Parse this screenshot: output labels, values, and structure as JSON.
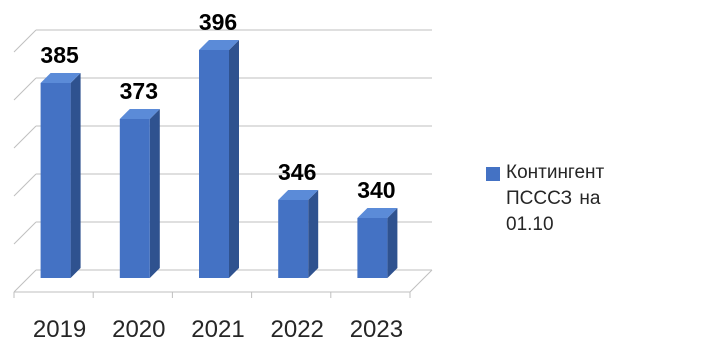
{
  "chart_data": {
    "type": "bar",
    "categories": [
      "2019",
      "2020",
      "2021",
      "2022",
      "2023"
    ],
    "series": [
      {
        "name": "Контингент  ПСССЗ на 01.10",
        "values": [
          385,
          373,
          396,
          346,
          340
        ]
      }
    ],
    "data_labels": [
      "385",
      "373",
      "396",
      "346",
      "340"
    ],
    "ylim": [
      320,
      400
    ],
    "grid": true,
    "legend_position": "right",
    "colors": {
      "bar_front": "#4472C4",
      "bar_side": "#2F528F",
      "bar_top": "#5B8BD8",
      "grid": "#BFBFBF",
      "label": "#000000",
      "tick": "#262626"
    }
  }
}
